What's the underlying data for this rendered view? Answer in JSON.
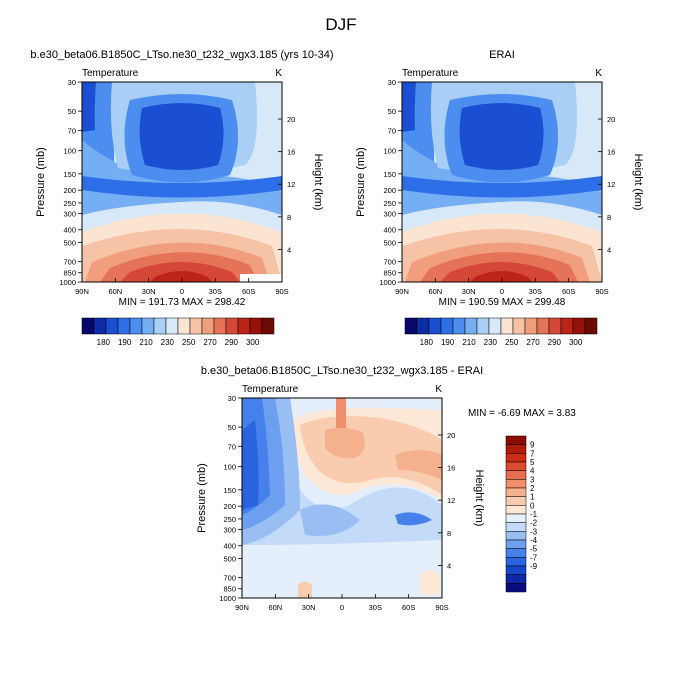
{
  "title": "DJF",
  "colors": {
    "abs_scale": [
      "#08086b",
      "#0c2ca8",
      "#1b4fd3",
      "#2e6fe8",
      "#4b8ef0",
      "#76aef3",
      "#a9cff6",
      "#d7e9f9",
      "#fbe4d1",
      "#f7c3a6",
      "#f09e7e",
      "#e57357",
      "#d54736",
      "#bb2417",
      "#961107",
      "#6e0a04"
    ],
    "diff_scale": [
      "#0a0a82",
      "#0d27a9",
      "#1945cc",
      "#2a62e0",
      "#4680ea",
      "#6c9fef",
      "#99bef4",
      "#c3daf8",
      "#e5effb",
      "#fde8d8",
      "#f9ccb0",
      "#f5b08e",
      "#ef8f6c",
      "#e86c4d",
      "#de4a2f",
      "#cc2b16",
      "#b01a0b",
      "#8a0d05"
    ]
  },
  "chart_data": [
    {
      "type": "heatmap",
      "panel": "model",
      "subtitle": "b.e30_beta06.B1850C_LTso.ne30_t232_wgx3.185 (yrs 10-34)",
      "field_label": "Temperature",
      "units_label": "K",
      "xlabel": "",
      "ylabel": "Pressure (mb)",
      "right_label": "Height (km)",
      "x_ticks": [
        "90N",
        "60N",
        "30N",
        "0",
        "30S",
        "60S",
        "90S"
      ],
      "y_ticks": [
        30,
        50,
        70,
        100,
        150,
        200,
        250,
        300,
        400,
        500,
        700,
        850,
        1000
      ],
      "y_range": [
        30,
        1000
      ],
      "height_ticks": [
        4,
        8,
        12,
        16,
        20
      ],
      "stats": "MIN = 191.73  MAX = 298.42",
      "colorbar_labels": [
        "180",
        "190",
        "210",
        "230",
        "250",
        "270",
        "290",
        "300"
      ]
    },
    {
      "type": "heatmap",
      "panel": "obs",
      "subtitle": "ERAI",
      "field_label": "Temperature",
      "units_label": "K",
      "xlabel": "",
      "ylabel": "Pressure (mb)",
      "right_label": "Height (km)",
      "x_ticks": [
        "90N",
        "60N",
        "30N",
        "0",
        "30S",
        "60S",
        "90S"
      ],
      "y_ticks": [
        30,
        50,
        70,
        100,
        150,
        200,
        250,
        300,
        400,
        500,
        700,
        850,
        1000
      ],
      "y_range": [
        30,
        1000
      ],
      "height_ticks": [
        4,
        8,
        12,
        16,
        20
      ],
      "stats": "MIN = 190.59  MAX = 299.48",
      "colorbar_labels": [
        "180",
        "190",
        "210",
        "230",
        "250",
        "270",
        "290",
        "300"
      ]
    },
    {
      "type": "heatmap",
      "panel": "difference",
      "subtitle": "b.e30_beta06.B1850C_LTso.ne30_t232_wgx3.185 - ERAI",
      "field_label": "Temperature",
      "units_label": "K",
      "xlabel": "",
      "ylabel": "Pressure (mb)",
      "right_label": "Height (km)",
      "x_ticks": [
        "90N",
        "60N",
        "30N",
        "0",
        "30S",
        "60S",
        "90S"
      ],
      "y_ticks": [
        30,
        50,
        70,
        100,
        150,
        200,
        250,
        300,
        400,
        500,
        700,
        850,
        1000
      ],
      "y_range": [
        30,
        1000
      ],
      "height_ticks": [
        4,
        8,
        12,
        16,
        20
      ],
      "stats": "MIN = -6.69  MAX =  3.83",
      "colorbar_labels": [
        "9",
        "7",
        "5",
        "4",
        "3",
        "2",
        "1",
        "0",
        "-1",
        "-2",
        "-3",
        "-4",
        "-5",
        "-7",
        "-9"
      ]
    }
  ]
}
